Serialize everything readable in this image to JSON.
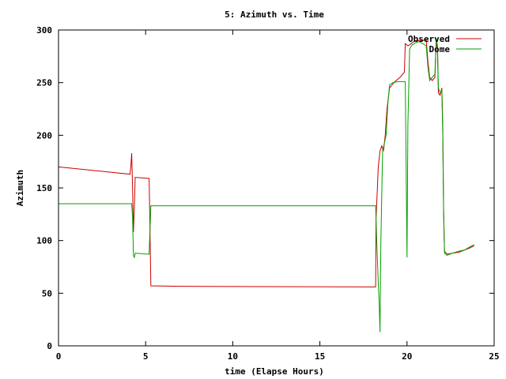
{
  "chart_data": {
    "type": "line",
    "title": "5: Azimuth vs. Time",
    "xlabel": "time (Elapse Hours)",
    "ylabel": "Azimuth",
    "xlim": [
      0,
      25
    ],
    "ylim": [
      0,
      300
    ],
    "xticks": [
      0,
      5,
      10,
      15,
      20,
      25
    ],
    "yticks": [
      0,
      50,
      100,
      150,
      200,
      250,
      300
    ],
    "xtick_labels": [
      "0",
      "5",
      "10",
      "15",
      "20",
      "25"
    ],
    "ytick_labels": [
      "0",
      "50",
      "100",
      "150",
      "200",
      "250",
      "300"
    ],
    "grid": false,
    "legend_position": "top-right",
    "series": [
      {
        "name": "Observed",
        "color": "#cc0000",
        "points": [
          [
            0,
            170
          ],
          [
            4.1,
            163
          ],
          [
            4.15,
            170
          ],
          [
            4.2,
            183
          ],
          [
            4.25,
            150
          ],
          [
            4.3,
            108
          ],
          [
            4.35,
            130
          ],
          [
            4.4,
            160
          ],
          [
            5.2,
            159
          ],
          [
            5.25,
            110
          ],
          [
            5.3,
            57
          ],
          [
            7.0,
            56.5
          ],
          [
            18.2,
            56
          ],
          [
            18.22,
            120
          ],
          [
            18.3,
            150
          ],
          [
            18.35,
            170
          ],
          [
            18.45,
            185
          ],
          [
            18.55,
            190
          ],
          [
            18.65,
            185
          ],
          [
            18.75,
            200
          ],
          [
            18.85,
            225
          ],
          [
            19.0,
            245
          ],
          [
            19.3,
            251
          ],
          [
            19.6,
            255
          ],
          [
            19.85,
            260
          ],
          [
            19.9,
            287
          ],
          [
            20.05,
            285
          ],
          [
            20.15,
            286
          ],
          [
            20.3,
            288
          ],
          [
            20.5,
            290
          ],
          [
            20.7,
            290
          ],
          [
            20.9,
            290
          ],
          [
            21.1,
            291
          ],
          [
            21.2,
            270
          ],
          [
            21.3,
            255
          ],
          [
            21.45,
            252
          ],
          [
            21.6,
            255
          ],
          [
            21.68,
            290
          ],
          [
            21.75,
            280
          ],
          [
            21.8,
            240
          ],
          [
            21.9,
            238
          ],
          [
            22.0,
            245
          ],
          [
            22.05,
            210
          ],
          [
            22.1,
            130
          ],
          [
            22.15,
            90
          ],
          [
            22.3,
            87
          ],
          [
            22.6,
            88
          ],
          [
            23.0,
            89
          ],
          [
            23.3,
            91
          ],
          [
            23.6,
            93
          ],
          [
            23.85,
            95
          ]
        ]
      },
      {
        "name": "Dome",
        "color": "#00a000",
        "points": [
          [
            0,
            135
          ],
          [
            4.2,
            135
          ],
          [
            4.25,
            122
          ],
          [
            4.3,
            86
          ],
          [
            4.35,
            84
          ],
          [
            4.4,
            88
          ],
          [
            5.2,
            87
          ],
          [
            5.25,
            110
          ],
          [
            5.3,
            133
          ],
          [
            7.0,
            133
          ],
          [
            18.2,
            133
          ],
          [
            18.25,
            105
          ],
          [
            18.35,
            60
          ],
          [
            18.4,
            42
          ],
          [
            18.45,
            13
          ],
          [
            18.5,
            100
          ],
          [
            18.6,
            185
          ],
          [
            18.8,
            200
          ],
          [
            18.9,
            230
          ],
          [
            19.0,
            248
          ],
          [
            19.2,
            250
          ],
          [
            19.5,
            251
          ],
          [
            19.9,
            251
          ],
          [
            19.95,
            170
          ],
          [
            20.0,
            84
          ],
          [
            20.05,
            210
          ],
          [
            20.15,
            282
          ],
          [
            20.3,
            286
          ],
          [
            20.5,
            288
          ],
          [
            20.7,
            289
          ],
          [
            20.9,
            287
          ],
          [
            21.1,
            285
          ],
          [
            21.2,
            265
          ],
          [
            21.3,
            252
          ],
          [
            21.45,
            255
          ],
          [
            21.6,
            258
          ],
          [
            21.68,
            292
          ],
          [
            21.75,
            285
          ],
          [
            21.8,
            245
          ],
          [
            21.9,
            240
          ],
          [
            22.0,
            243
          ],
          [
            22.05,
            200
          ],
          [
            22.1,
            127
          ],
          [
            22.15,
            88
          ],
          [
            22.3,
            86
          ],
          [
            22.6,
            88
          ],
          [
            23.0,
            90
          ],
          [
            23.3,
            91
          ],
          [
            23.6,
            94
          ],
          [
            23.85,
            96
          ]
        ]
      }
    ]
  }
}
